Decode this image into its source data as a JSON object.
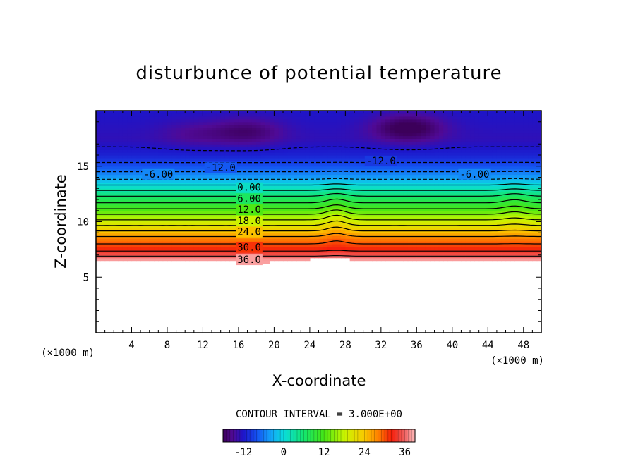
{
  "chart_data": {
    "type": "heatmap",
    "title": "disturbunce of potential temperature",
    "xlabel": "X-coordinate",
    "ylabel": "Z-coordinate",
    "x_unit": "(×1000 m)",
    "z_unit": "(×1000 m)",
    "xlim": [
      0,
      50
    ],
    "ylim": [
      0,
      20
    ],
    "x_ticks": [
      4,
      8,
      12,
      16,
      20,
      24,
      28,
      32,
      36,
      40,
      44,
      48
    ],
    "y_ticks": [
      5,
      10,
      15
    ],
    "contour_interval_text": "CONTOUR INTERVAL = 3.000E+00",
    "contour_labels": [
      {
        "text": "0.00",
        "x": 17.2,
        "z": 13.1
      },
      {
        "text": "6.00",
        "x": 17.2,
        "z": 12.1
      },
      {
        "text": "12.0",
        "x": 17.2,
        "z": 11.1
      },
      {
        "text": "18.0",
        "x": 17.2,
        "z": 10.1
      },
      {
        "text": "24.0",
        "x": 17.2,
        "z": 9.1
      },
      {
        "text": "30.0",
        "x": 17.2,
        "z": 7.7
      },
      {
        "text": "36.0",
        "x": 17.2,
        "z": 6.6
      },
      {
        "text": "-6.00",
        "x": 7.0,
        "z": 14.3
      },
      {
        "text": "-12.0",
        "x": 14.0,
        "z": 14.9
      },
      {
        "text": "-12.0",
        "x": 32.0,
        "z": 15.5
      },
      {
        "text": "-6.00",
        "x": 42.5,
        "z": 14.3
      }
    ],
    "colorbar": {
      "range": [
        -18,
        39
      ],
      "ticks": [
        -12,
        0,
        12,
        24,
        36
      ],
      "tick_labels": [
        "-12",
        "0",
        "12",
        "24",
        "36"
      ]
    },
    "field": {
      "blank_below_z": 6.6,
      "profile": [
        {
          "z": 6.6,
          "value": 38
        },
        {
          "z": 7.5,
          "value": 32
        },
        {
          "z": 8.5,
          "value": 28
        },
        {
          "z": 9.5,
          "value": 22
        },
        {
          "z": 10.5,
          "value": 16
        },
        {
          "z": 11.5,
          "value": 10
        },
        {
          "z": 12.5,
          "value": 5
        },
        {
          "z": 13.3,
          "value": 0
        },
        {
          "z": 14.0,
          "value": -4
        },
        {
          "z": 15.0,
          "value": -8
        },
        {
          "z": 16.0,
          "value": -11
        },
        {
          "z": 17.5,
          "value": -13
        },
        {
          "z": 19.8,
          "value": -12
        }
      ],
      "cold_spots": [
        {
          "x": 17,
          "z": 18.2,
          "value": -17
        },
        {
          "x": 11,
          "z": 18.0,
          "value": -15
        },
        {
          "x": 35,
          "z": 18.5,
          "value": -19
        }
      ]
    }
  }
}
